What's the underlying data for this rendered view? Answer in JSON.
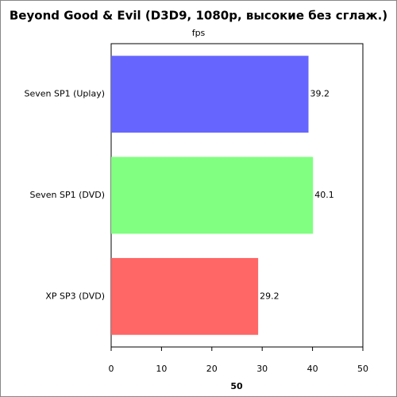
{
  "chart_data": {
    "type": "bar",
    "orientation": "horizontal",
    "title": "Beyond Good & Evil (D3D9, 1080p, высокие без сглаж.)",
    "subtitle": "fps",
    "x_label": "50",
    "categories": [
      "Seven SP1 (Uplay)",
      "Seven SP1 (DVD)",
      "XP SP3 (DVD)"
    ],
    "values": [
      39.2,
      40.1,
      29.2
    ],
    "colors": [
      "#6666ff",
      "#80ff80",
      "#ff6666"
    ],
    "xlim": [
      0,
      50
    ],
    "xticks": [
      0,
      10,
      20,
      30,
      40,
      50
    ],
    "grid": false
  }
}
